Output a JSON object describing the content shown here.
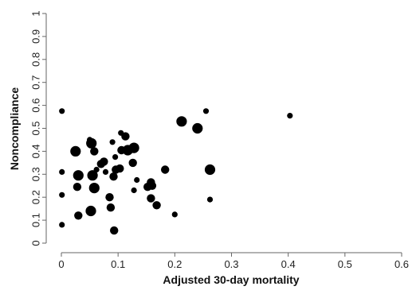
{
  "chart_data": {
    "type": "scatter",
    "title": "",
    "xlabel": "Adjusted 30-day mortality",
    "ylabel": "Noncompliance",
    "xlim": [
      0,
      0.6
    ],
    "ylim": [
      0,
      1
    ],
    "x_ticks": [
      "0",
      "0.1",
      "0.2",
      "0.3",
      "0.4",
      "0.5",
      "0.6"
    ],
    "y_ticks": [
      "0",
      "0.1",
      "0.2",
      "0.3",
      "0.4",
      "0.5",
      "0.6",
      "0.7",
      "0.8",
      "0.9",
      "1"
    ],
    "grid": false,
    "legend": "none",
    "marker_color": "#000000",
    "points": [
      {
        "x": 0.001,
        "y": 0.575,
        "size": "small"
      },
      {
        "x": 0.001,
        "y": 0.31,
        "size": "small"
      },
      {
        "x": 0.001,
        "y": 0.21,
        "size": "small"
      },
      {
        "x": 0.001,
        "y": 0.08,
        "size": "small"
      },
      {
        "x": 0.025,
        "y": 0.4,
        "size": "large"
      },
      {
        "x": 0.03,
        "y": 0.295,
        "size": "large"
      },
      {
        "x": 0.028,
        "y": 0.245,
        "size": "medium"
      },
      {
        "x": 0.03,
        "y": 0.12,
        "size": "medium"
      },
      {
        "x": 0.05,
        "y": 0.45,
        "size": "small"
      },
      {
        "x": 0.053,
        "y": 0.435,
        "size": "large"
      },
      {
        "x": 0.055,
        "y": 0.295,
        "size": "large"
      },
      {
        "x": 0.058,
        "y": 0.4,
        "size": "medium"
      },
      {
        "x": 0.058,
        "y": 0.24,
        "size": "large"
      },
      {
        "x": 0.052,
        "y": 0.14,
        "size": "large"
      },
      {
        "x": 0.062,
        "y": 0.32,
        "size": "small"
      },
      {
        "x": 0.07,
        "y": 0.345,
        "size": "medium"
      },
      {
        "x": 0.075,
        "y": 0.355,
        "size": "medium"
      },
      {
        "x": 0.078,
        "y": 0.31,
        "size": "small"
      },
      {
        "x": 0.085,
        "y": 0.2,
        "size": "medium"
      },
      {
        "x": 0.087,
        "y": 0.155,
        "size": "medium"
      },
      {
        "x": 0.09,
        "y": 0.44,
        "size": "small"
      },
      {
        "x": 0.092,
        "y": 0.29,
        "size": "medium"
      },
      {
        "x": 0.096,
        "y": 0.32,
        "size": "medium"
      },
      {
        "x": 0.095,
        "y": 0.375,
        "size": "small"
      },
      {
        "x": 0.093,
        "y": 0.055,
        "size": "medium"
      },
      {
        "x": 0.103,
        "y": 0.325,
        "size": "medium"
      },
      {
        "x": 0.105,
        "y": 0.48,
        "size": "small"
      },
      {
        "x": 0.106,
        "y": 0.405,
        "size": "medium"
      },
      {
        "x": 0.113,
        "y": 0.465,
        "size": "medium"
      },
      {
        "x": 0.117,
        "y": 0.405,
        "size": "large"
      },
      {
        "x": 0.126,
        "y": 0.35,
        "size": "medium"
      },
      {
        "x": 0.128,
        "y": 0.415,
        "size": "large"
      },
      {
        "x": 0.128,
        "y": 0.23,
        "size": "small"
      },
      {
        "x": 0.133,
        "y": 0.275,
        "size": "small"
      },
      {
        "x": 0.152,
        "y": 0.245,
        "size": "medium"
      },
      {
        "x": 0.158,
        "y": 0.265,
        "size": "medium"
      },
      {
        "x": 0.16,
        "y": 0.25,
        "size": "medium"
      },
      {
        "x": 0.158,
        "y": 0.195,
        "size": "medium"
      },
      {
        "x": 0.168,
        "y": 0.165,
        "size": "medium"
      },
      {
        "x": 0.183,
        "y": 0.32,
        "size": "medium"
      },
      {
        "x": 0.2,
        "y": 0.125,
        "size": "small"
      },
      {
        "x": 0.212,
        "y": 0.53,
        "size": "large"
      },
      {
        "x": 0.24,
        "y": 0.5,
        "size": "large"
      },
      {
        "x": 0.255,
        "y": 0.575,
        "size": "small"
      },
      {
        "x": 0.262,
        "y": 0.32,
        "size": "large"
      },
      {
        "x": 0.262,
        "y": 0.19,
        "size": "small"
      },
      {
        "x": 0.403,
        "y": 0.555,
        "size": "small"
      }
    ]
  }
}
